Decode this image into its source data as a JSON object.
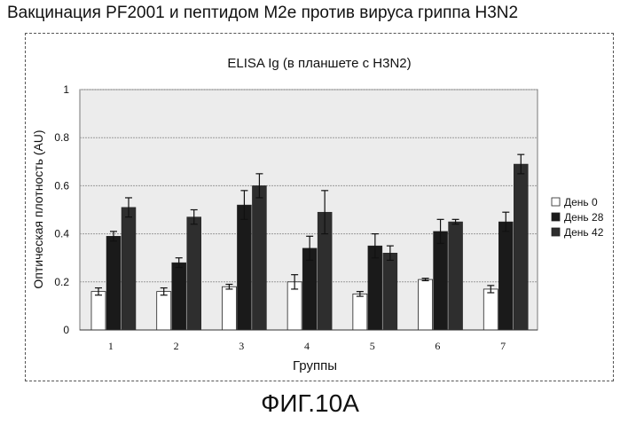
{
  "page": {
    "title": "Вакцинация PF2001 и пептидом M2e против вируса гриппа H3N2",
    "caption": "ФИГ.10А"
  },
  "colors": {
    "day0": "#ffffff",
    "day28": "#1a1a1a",
    "day42": "#2e2e2e",
    "plot_bg": "#ececec",
    "grid": "#9a9a9a"
  },
  "chart_data": {
    "type": "bar",
    "title": "ELISA Ig (в планшете с H3N2)",
    "xlabel": "Группы",
    "ylabel": "Оптическая плотность (AU)",
    "categories": [
      "1",
      "2",
      "3",
      "4",
      "5",
      "6",
      "7"
    ],
    "ylim": [
      0,
      1
    ],
    "yticks": [
      "0",
      "0.2",
      "0.4",
      "0.6",
      "0.8",
      "1"
    ],
    "grid": true,
    "legend_position": "right",
    "series": [
      {
        "name": "День 0",
        "values": [
          0.16,
          0.16,
          0.18,
          0.2,
          0.15,
          0.21,
          0.17
        ],
        "errors": [
          0.015,
          0.015,
          0.01,
          0.03,
          0.01,
          0.005,
          0.015
        ]
      },
      {
        "name": "День 28",
        "values": [
          0.39,
          0.28,
          0.52,
          0.34,
          0.35,
          0.41,
          0.45
        ],
        "errors": [
          0.02,
          0.02,
          0.06,
          0.05,
          0.05,
          0.05,
          0.04
        ]
      },
      {
        "name": "День 42",
        "values": [
          0.51,
          0.47,
          0.6,
          0.49,
          0.32,
          0.45,
          0.69
        ],
        "errors": [
          0.04,
          0.03,
          0.05,
          0.09,
          0.03,
          0.01,
          0.04
        ]
      }
    ]
  }
}
